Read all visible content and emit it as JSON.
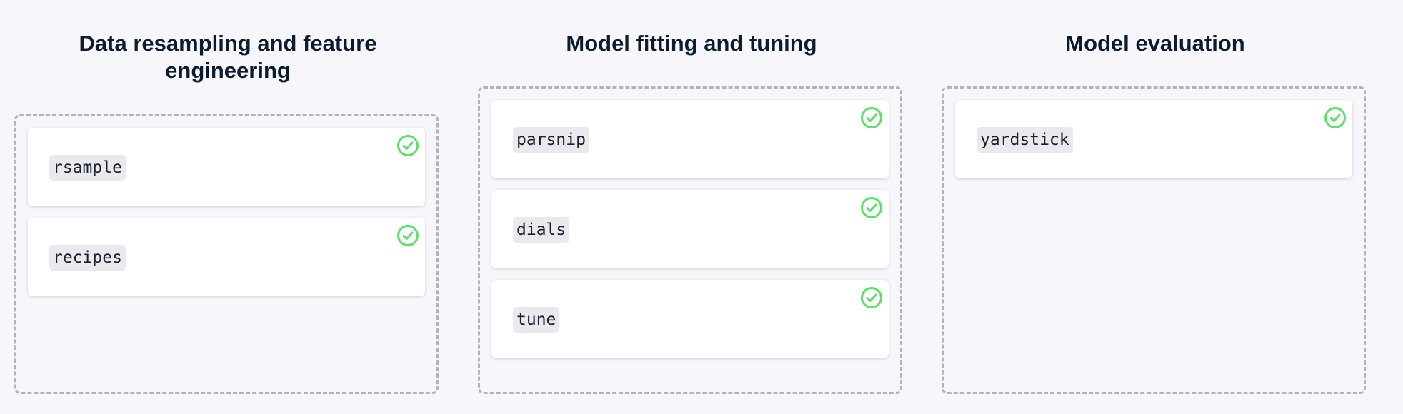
{
  "columns": [
    {
      "title": "Data resampling and feature engineering",
      "items": [
        {
          "label": "rsample",
          "status": "check-circle-icon"
        },
        {
          "label": "recipes",
          "status": "check-circle-icon"
        }
      ]
    },
    {
      "title": "Model fitting and tuning",
      "items": [
        {
          "label": "parsnip",
          "status": "check-circle-icon"
        },
        {
          "label": "dials",
          "status": "check-circle-icon"
        },
        {
          "label": "tune",
          "status": "check-circle-icon"
        }
      ]
    },
    {
      "title": "Model evaluation",
      "items": [
        {
          "label": "yardstick",
          "status": "check-circle-icon"
        }
      ]
    }
  ],
  "colors": {
    "background": "#f7f7fb",
    "title_text": "#0d1b2e",
    "dropzone_border": "#b3b3bd",
    "card_background": "#ffffff",
    "code_chip_background": "#e9e9ee",
    "check_green": "#5ee06a"
  }
}
